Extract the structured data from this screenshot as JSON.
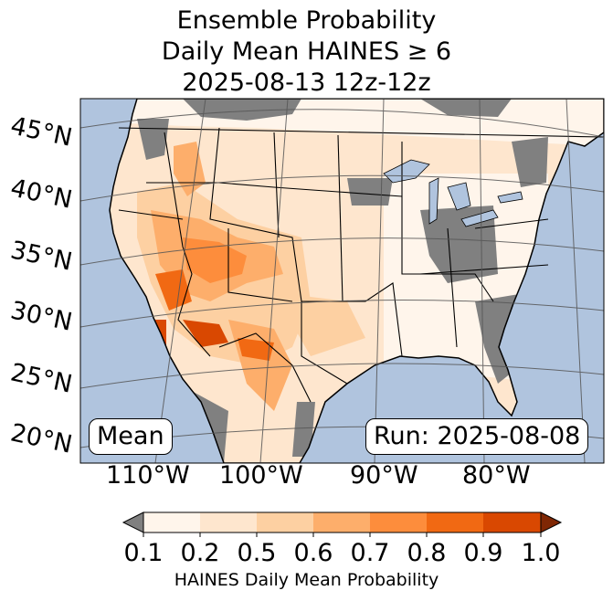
{
  "title": {
    "line1": "Ensemble Probability",
    "line2": "Daily Mean HAINES ≥ 6",
    "line3": "2025-08-13 12z-12z"
  },
  "map": {
    "latitude_labels": [
      "45°N",
      "40°N",
      "35°N",
      "30°N",
      "25°N",
      "20°N"
    ],
    "longitude_labels": [
      "110°W",
      "100°W",
      "90°W",
      "80°W"
    ],
    "stat_label": "Mean",
    "run_label": "Run: 2025-08-08",
    "colors": {
      "ocean": "#b0c4de",
      "missing": "#808080",
      "land": "#ffffff"
    }
  },
  "colorbar": {
    "ticks": [
      "0.1",
      "0.2",
      "0.5",
      "0.6",
      "0.7",
      "0.8",
      "0.9",
      "1.0"
    ],
    "colors": [
      "#fff5eb",
      "#fee6ce",
      "#fdd0a2",
      "#fdae6b",
      "#fd8d3c",
      "#f16913",
      "#d94801",
      "#a63603"
    ],
    "under_color": "#808080",
    "over_color": "#7f2704",
    "caption": "HAINES Daily Mean Probability"
  }
}
